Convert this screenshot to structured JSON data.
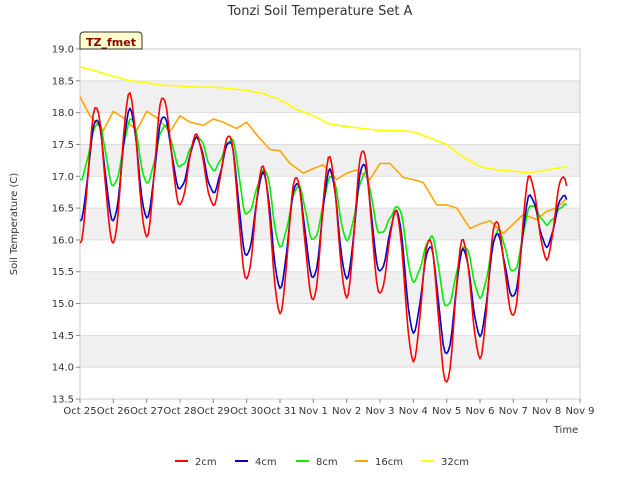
{
  "chart_data": {
    "type": "line",
    "title": "Tonzi Soil Temperature Set A",
    "xlabel": "Time",
    "ylabel": "Soil Temperature (C)",
    "badge": "TZ_fmet",
    "ylim": [
      13.5,
      19.0
    ],
    "yticks": [
      "13.5",
      "14.0",
      "14.5",
      "15.0",
      "15.5",
      "16.0",
      "16.5",
      "17.0",
      "17.5",
      "18.0",
      "18.5",
      "19.0"
    ],
    "xlim": [
      0,
      15
    ],
    "xticks": [
      "Oct 25",
      "Oct 26",
      "Oct 27",
      "Oct 28",
      "Oct 29",
      "Oct 30",
      "Oct 31",
      "Nov 1",
      "Nov 2",
      "Nov 3",
      "Nov 4",
      "Nov 5",
      "Nov 6",
      "Nov 7",
      "Nov 8",
      "Nov 9"
    ],
    "grid": true,
    "legend_position": "bottom-center",
    "series": [
      {
        "name": "2cm",
        "color": "#ff0000",
        "min": [
          15.95,
          15.95,
          16.05,
          16.55,
          16.55,
          15.38,
          14.85,
          15.05,
          15.1,
          15.15,
          14.1,
          13.75,
          14.15,
          14.8,
          15.7
        ],
        "max": [
          18.1,
          18.3,
          18.25,
          17.65,
          17.65,
          17.15,
          17.0,
          17.3,
          17.42,
          16.45,
          16.02,
          16.0,
          16.3,
          17.0
        ]
      },
      {
        "name": "4cm",
        "color": "#0000cc",
        "min": [
          16.3,
          16.3,
          16.35,
          16.8,
          16.75,
          15.75,
          15.25,
          15.4,
          15.4,
          15.5,
          14.55,
          14.2,
          14.5,
          15.1,
          15.9
        ],
        "max": [
          17.9,
          18.05,
          17.95,
          17.6,
          17.55,
          17.05,
          16.9,
          17.1,
          17.2,
          16.45,
          15.9,
          15.85,
          16.1,
          16.7
        ]
      },
      {
        "name": "8cm",
        "color": "#00ee00",
        "min": [
          16.95,
          16.85,
          16.9,
          17.15,
          17.1,
          16.4,
          15.9,
          16.0,
          16.0,
          16.1,
          15.35,
          14.95,
          15.1,
          15.5,
          16.25
        ],
        "max": [
          17.85,
          17.9,
          17.8,
          17.62,
          17.58,
          17.1,
          16.85,
          17.0,
          17.05,
          16.52,
          16.05,
          15.9,
          16.15,
          16.55
        ]
      },
      {
        "name": "16cm",
        "color": "#ffa500",
        "x": [
          0,
          0.3,
          0.7,
          1.0,
          1.3,
          1.7,
          2.0,
          2.3,
          2.7,
          3.0,
          3.3,
          3.7,
          4.0,
          4.3,
          4.7,
          5.0,
          5.3,
          5.7,
          6.0,
          6.3,
          6.7,
          7.0,
          7.3,
          7.7,
          8.0,
          8.3,
          8.7,
          9.0,
          9.3,
          9.7,
          10.0,
          10.3,
          10.7,
          11.0,
          11.3,
          11.7,
          12.0,
          12.3,
          12.7,
          13.0,
          13.3,
          13.7,
          14.0,
          14.3,
          14.6
        ],
        "y": [
          18.25,
          17.95,
          17.72,
          18.02,
          17.92,
          17.72,
          18.02,
          17.92,
          17.7,
          17.95,
          17.85,
          17.8,
          17.9,
          17.85,
          17.75,
          17.85,
          17.65,
          17.42,
          17.4,
          17.2,
          17.05,
          17.12,
          17.18,
          16.95,
          17.05,
          17.1,
          16.95,
          17.2,
          17.2,
          16.98,
          16.95,
          16.9,
          16.55,
          16.55,
          16.5,
          16.18,
          16.25,
          16.3,
          16.1,
          16.25,
          16.4,
          16.32,
          16.45,
          16.5,
          16.65
        ]
      },
      {
        "name": "32cm",
        "color": "#ffff00",
        "x": [
          0,
          0.5,
          1.0,
          1.5,
          2.0,
          2.5,
          3.0,
          3.5,
          4.0,
          4.5,
          5.0,
          5.5,
          6.0,
          6.5,
          7.0,
          7.5,
          8.0,
          8.5,
          9.0,
          9.5,
          10.0,
          10.5,
          11.0,
          11.5,
          12.0,
          12.5,
          13.0,
          13.5,
          14.0,
          14.6
        ],
        "y": [
          18.72,
          18.65,
          18.57,
          18.5,
          18.47,
          18.43,
          18.42,
          18.4,
          18.4,
          18.38,
          18.35,
          18.3,
          18.2,
          18.05,
          17.95,
          17.82,
          17.78,
          17.75,
          17.72,
          17.72,
          17.7,
          17.6,
          17.5,
          17.3,
          17.15,
          17.1,
          17.08,
          17.05,
          17.1,
          17.15
        ]
      }
    ]
  }
}
